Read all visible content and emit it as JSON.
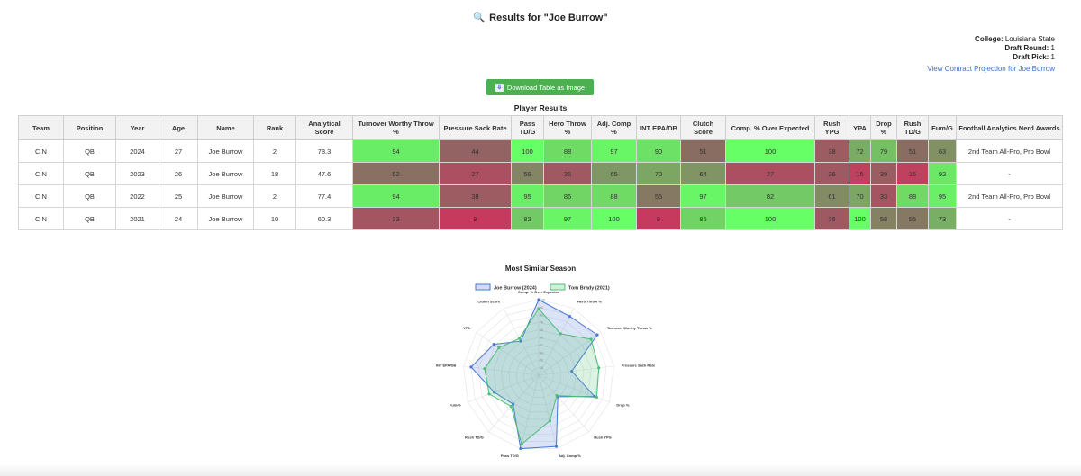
{
  "header": {
    "title": "Results for \"Joe Burrow\"",
    "icon": "magnifier-icon"
  },
  "player_info": {
    "college_label": "College:",
    "college_value": "Louisiana State",
    "draft_round_label": "Draft Round:",
    "draft_round_value": "1",
    "draft_pick_label": "Draft Pick:",
    "draft_pick_value": "1"
  },
  "contract_link": "View Contract Projection for Joe Burrow",
  "download_button": "Download Table as Image",
  "table": {
    "title": "Player Results",
    "headers": [
      "Team",
      "Position",
      "Year",
      "Age",
      "Name",
      "Rank",
      "Analytical Score",
      "Turnover Worthy Throw %",
      "Pressure Sack Rate",
      "Pass TD/G",
      "Hero Throw %",
      "Adj. Comp %",
      "INT EPA/DB",
      "Clutch Score",
      "Comp. % Over Expected",
      "Rush YPG",
      "YPA",
      "Drop %",
      "Rush TD/G",
      "Fum/G",
      "Football Analytics Nerd Awards"
    ],
    "rows": [
      [
        "CIN",
        "QB",
        "2024",
        "27",
        "Joe Burrow",
        "2",
        "78.3",
        "94",
        "44",
        "100",
        "88",
        "97",
        "90",
        "51",
        "100",
        "38",
        "72",
        "79",
        "51",
        "63",
        "2nd Team All-Pro, Pro Bowl"
      ],
      [
        "CIN",
        "QB",
        "2023",
        "26",
        "Joe Burrow",
        "18",
        "47.6",
        "52",
        "27",
        "59",
        "35",
        "65",
        "70",
        "64",
        "27",
        "36",
        "15",
        "39",
        "15",
        "92",
        "-"
      ],
      [
        "CIN",
        "QB",
        "2022",
        "25",
        "Joe Burrow",
        "2",
        "77.4",
        "94",
        "38",
        "95",
        "86",
        "88",
        "55",
        "97",
        "82",
        "61",
        "70",
        "33",
        "88",
        "95",
        "2nd Team All-Pro, Pro Bowl"
      ],
      [
        "CIN",
        "QB",
        "2021",
        "24",
        "Joe Burrow",
        "10",
        "60.3",
        "33",
        "9",
        "82",
        "97",
        "100",
        "9",
        "85",
        "100",
        "36",
        "100",
        "58",
        "55",
        "73",
        "-"
      ]
    ]
  },
  "colors": {
    "scale_low": "#d42f5f",
    "scale_mid": "#8a6a63",
    "scale_high": "#66ff66",
    "button_bg": "#4caf50",
    "link": "#3b6fd0",
    "series_a": "#4a78d6",
    "series_b": "#4cbf74"
  },
  "chart_data": {
    "type": "radar",
    "title": "Most Similar Season",
    "axes": [
      "Comp. % Over Expected",
      "Hero Throw %",
      "Turnover Worthy Throw %",
      "Pressure Sack Rate",
      "Drop %",
      "Rush YPG",
      "Adj. Comp %",
      "Pass TD/G",
      "Rush TD/G",
      "Fum/G",
      "INT EPA/DB",
      "YPA",
      "Clutch Score"
    ],
    "series": [
      {
        "name": "Joe Burrow (2024)",
        "values": [
          100,
          88,
          94,
          44,
          79,
          38,
          97,
          100,
          51,
          63,
          90,
          72,
          51
        ]
      },
      {
        "name": "Tom Brady (2021)",
        "values": [
          88,
          62,
          84,
          80,
          82,
          36,
          62,
          94,
          55,
          70,
          72,
          64,
          55
        ]
      }
    ],
    "ticks": [
      "0",
      "10",
      "20",
      "30",
      "40",
      "50",
      "60",
      "70",
      "80",
      "90",
      "100"
    ],
    "rlim": [
      0,
      100
    ],
    "legend_position": "top"
  }
}
